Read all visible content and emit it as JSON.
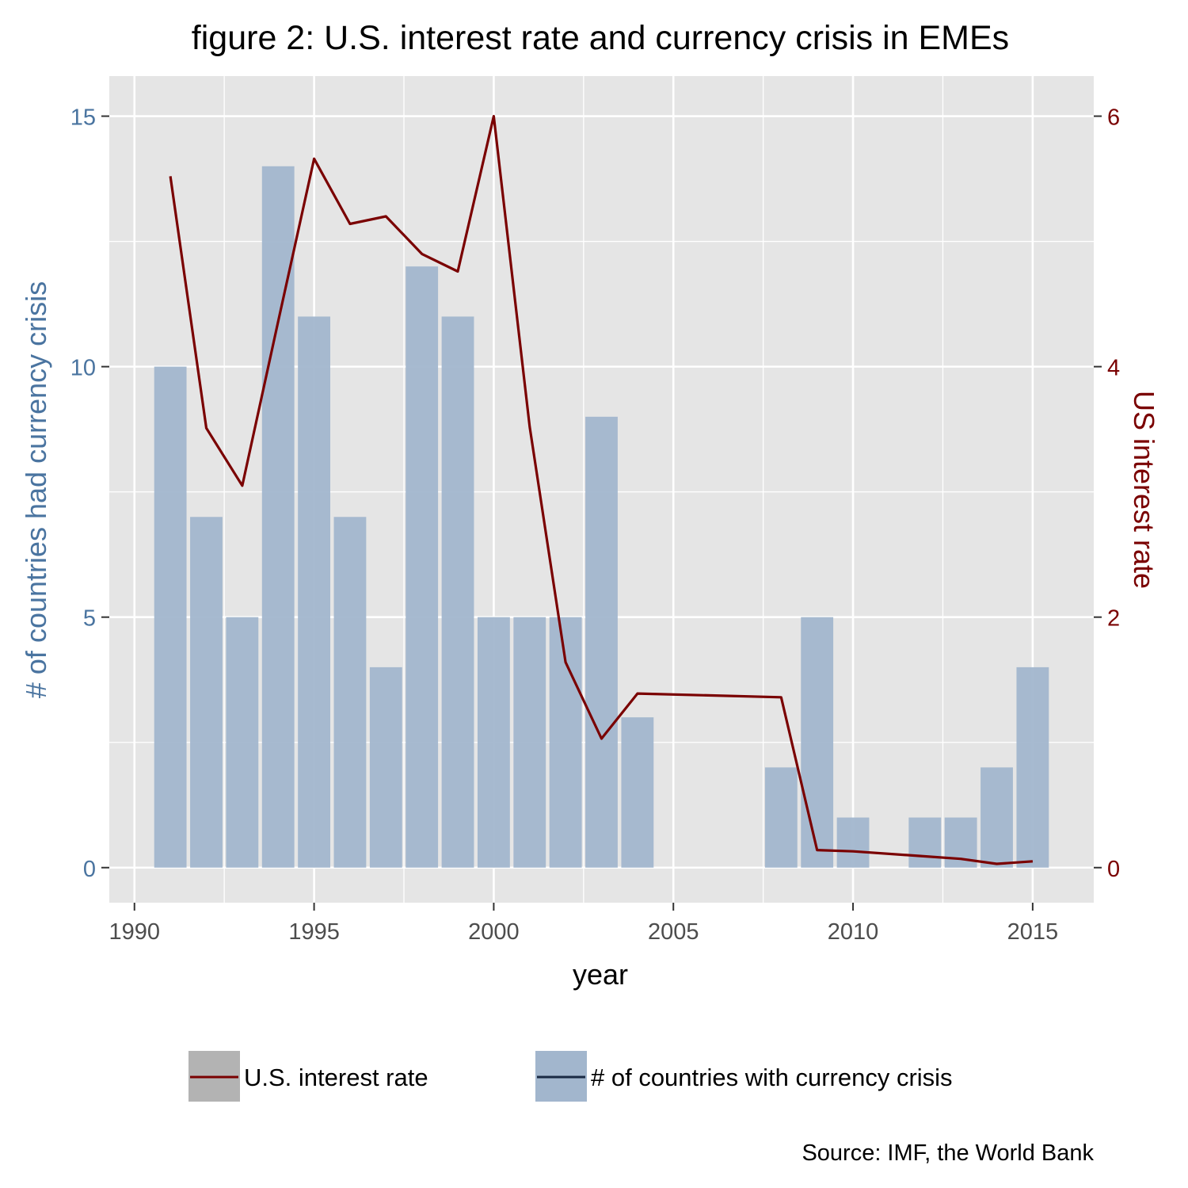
{
  "chart_data": {
    "type": "bar+line",
    "title": "figure 2: U.S. interest rate and currency crisis in EMEs",
    "xlabel": "year",
    "ylabel_left": "# of countries had currency crisis",
    "ylabel_right": "US interest rate",
    "x_ticks": [
      1990,
      1995,
      2000,
      2005,
      2010,
      2015
    ],
    "xlim": [
      1989.3,
      2016.7
    ],
    "y_left_ticks": [
      0,
      5,
      10,
      15
    ],
    "ylim_left": [
      -0.7,
      15.8
    ],
    "y_right_ticks": [
      0,
      2,
      4,
      6
    ],
    "ylim_right": [
      -0.28,
      6.32
    ],
    "grid": true,
    "legend_position": "bottom",
    "source": "Source: IMF, the World Bank",
    "colors": {
      "bar": "#a2b6cd",
      "line": "#7a0000",
      "left_axis_text": "#4a74a0",
      "right_axis_text": "#7a0000",
      "panel": "#e5e5e5",
      "grid": "#ffffff"
    },
    "series": [
      {
        "name": "# of countries with currency crisis",
        "type": "bar",
        "axis": "left",
        "x": [
          1991,
          1992,
          1993,
          1994,
          1995,
          1996,
          1997,
          1998,
          1999,
          2000,
          2001,
          2002,
          2003,
          2004,
          2008,
          2009,
          2010,
          2012,
          2013,
          2014,
          2015
        ],
        "values": [
          10,
          7,
          5,
          14,
          11,
          7,
          4,
          12,
          11,
          5,
          5,
          5,
          9,
          3,
          2,
          5,
          1,
          1,
          1,
          2,
          4
        ]
      },
      {
        "name": "U.S. interest rate",
        "type": "line",
        "axis": "right",
        "x": [
          1991,
          1992,
          1993,
          1994,
          1995,
          1996,
          1997,
          1998,
          1999,
          2000,
          2001,
          2002,
          2003,
          2004,
          2008,
          2009,
          2010,
          2012,
          2013,
          2014,
          2015
        ],
        "values": [
          5.52,
          3.51,
          3.05,
          4.36,
          5.66,
          5.14,
          5.2,
          4.9,
          4.76,
          6.0,
          3.52,
          1.64,
          1.03,
          1.39,
          1.36,
          0.14,
          0.13,
          0.09,
          0.07,
          0.03,
          0.05
        ]
      }
    ]
  }
}
